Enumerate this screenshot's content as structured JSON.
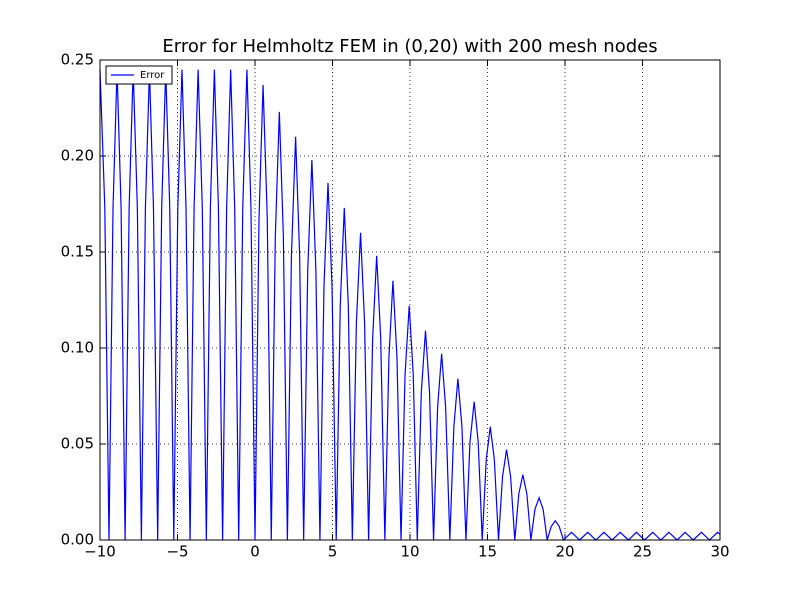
{
  "chart_data": {
    "type": "line",
    "title": "Error for Helmholtz FEM in (0,20) with 200 mesh nodes",
    "x": [
      -10,
      -9.69,
      -9.42,
      -9.16,
      -8.9,
      -8.64,
      -8.38,
      -8.12,
      -7.86,
      -7.59,
      -7.33,
      -7.07,
      -6.81,
      -6.55,
      -6.28,
      -6.02,
      -5.76,
      -5.5,
      -5.24,
      -4.98,
      -4.71,
      -4.45,
      -4.19,
      -3.93,
      -3.67,
      -3.4,
      -3.14,
      -2.88,
      -2.62,
      -2.36,
      -2.09,
      -1.83,
      -1.57,
      -1.31,
      -1.05,
      -0.79,
      -0.52,
      -0.26,
      0,
      0.26,
      0.52,
      0.79,
      1.05,
      1.31,
      1.57,
      1.83,
      2.09,
      2.35,
      2.62,
      2.88,
      3.14,
      3.4,
      3.67,
      3.93,
      4.19,
      4.45,
      4.71,
      4.97,
      5.24,
      5.5,
      5.76,
      6.02,
      6.28,
      6.54,
      6.81,
      7.07,
      7.33,
      7.59,
      7.85,
      8.11,
      8.38,
      8.64,
      8.9,
      9.16,
      9.42,
      9.68,
      9.95,
      10.21,
      10.47,
      10.73,
      11.0,
      11.26,
      11.52,
      11.78,
      12.04,
      12.3,
      12.57,
      12.83,
      13.09,
      13.35,
      13.61,
      13.87,
      14.14,
      14.4,
      14.66,
      14.92,
      15.18,
      15.44,
      15.71,
      15.97,
      16.23,
      16.49,
      16.76,
      17.02,
      17.28,
      17.54,
      17.8,
      18.06,
      18.33,
      18.59,
      18.85,
      19.11,
      19.37,
      19.63,
      19.9,
      20.42,
      20.94,
      21.47,
      21.99,
      22.51,
      23.04,
      23.56,
      24.09,
      24.61,
      25.13,
      25.66,
      26.18,
      26.7,
      27.23,
      27.75,
      28.27,
      28.8,
      29.32,
      29.84,
      30
    ],
    "series": [
      {
        "name": "Error",
        "color": "#0000ff",
        "values": [
          0.245,
          0.173,
          0,
          0.173,
          0.245,
          0.173,
          0,
          0.173,
          0.245,
          0.173,
          0,
          0.173,
          0.245,
          0.173,
          0,
          0.173,
          0.245,
          0.173,
          0,
          0.173,
          0.245,
          0.173,
          0,
          0.173,
          0.245,
          0.173,
          0,
          0.173,
          0.245,
          0.173,
          0,
          0.173,
          0.245,
          0.173,
          0,
          0.173,
          0.245,
          0.173,
          0,
          0.168,
          0.237,
          0.168,
          0,
          0.158,
          0.223,
          0.158,
          0,
          0.148,
          0.21,
          0.148,
          0,
          0.14,
          0.198,
          0.14,
          0,
          0.132,
          0.186,
          0.132,
          0,
          0.122,
          0.173,
          0.122,
          0,
          0.113,
          0.16,
          0.113,
          0,
          0.105,
          0.148,
          0.105,
          0,
          0.095,
          0.135,
          0.095,
          0,
          0.086,
          0.122,
          0.086,
          0,
          0.077,
          0.109,
          0.077,
          0,
          0.069,
          0.097,
          0.069,
          0,
          0.059,
          0.084,
          0.059,
          0,
          0.051,
          0.072,
          0.051,
          0,
          0.042,
          0.059,
          0.042,
          0,
          0.033,
          0.047,
          0.033,
          0,
          0.024,
          0.034,
          0.024,
          0,
          0.016,
          0.022,
          0.016,
          0,
          0.007,
          0.01,
          0.007,
          0,
          0.004,
          0,
          0.004,
          0,
          0.004,
          0,
          0.004,
          0,
          0.004,
          0,
          0.004,
          0,
          0.004,
          0,
          0.004,
          0,
          0.004,
          0,
          0.004,
          0.003
        ]
      }
    ],
    "xlim": [
      -10,
      30
    ],
    "xticks": [
      {
        "value": -10,
        "label": "−10"
      },
      {
        "value": -5,
        "label": "−5"
      },
      0,
      5,
      10,
      15,
      20,
      25,
      30
    ],
    "ylim": [
      0,
      0.25
    ],
    "yticks": [
      {
        "value": 0,
        "label": "0.00"
      },
      {
        "value": 0.05,
        "label": "0.05"
      },
      {
        "value": 0.1,
        "label": "0.10"
      },
      {
        "value": 0.15,
        "label": "0.15"
      },
      {
        "value": 0.2,
        "label": "0.20"
      },
      {
        "value": 0.25,
        "label": "0.25"
      }
    ],
    "grid": true,
    "legend": "upper left"
  }
}
